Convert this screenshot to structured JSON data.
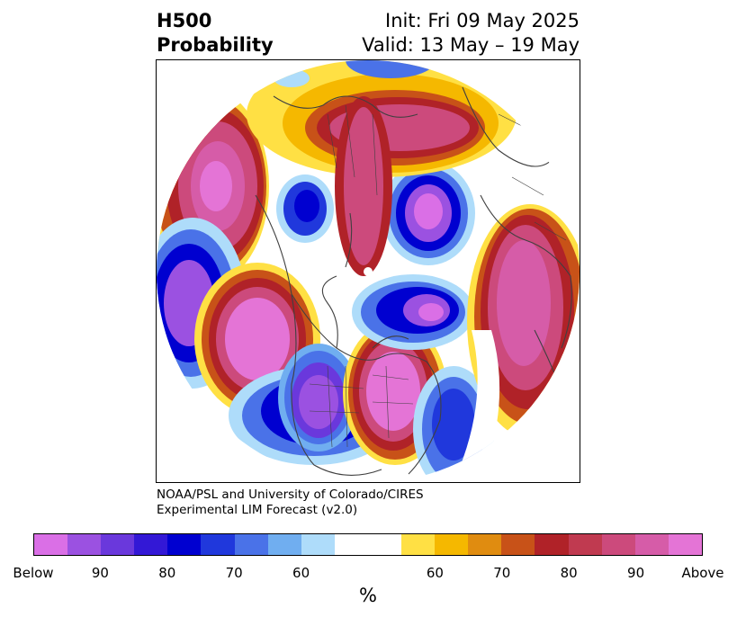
{
  "title": {
    "left_line1": "H500",
    "left_line2": "Probability",
    "right_line1": "Init: Fri 09 May 2025",
    "right_line2": "Valid: 13 May – 19 May"
  },
  "credit": {
    "line1": "NOAA/PSL and University of Colorado/CIRES",
    "line2": "Experimental LIM Forecast (v2.0)"
  },
  "colorbar": {
    "unit": "%",
    "colors": [
      "#da6fe6",
      "#9b51e1",
      "#6a38dc",
      "#3318d6",
      "#0000d0",
      "#2038dc",
      "#4a72e8",
      "#70aef0",
      "#aedcfa",
      "#ffffff",
      "#ffffff",
      "#ffe044",
      "#f5b800",
      "#e08c10",
      "#c85218",
      "#b02228",
      "#c03a50",
      "#cc4a7c",
      "#d65ca8",
      "#e474d6"
    ],
    "ticks": [
      "Below",
      "90",
      "80",
      "70",
      "60",
      "60",
      "70",
      "80",
      "90",
      "Above"
    ]
  },
  "palette": {
    "below_strong": "#da6fe6",
    "below_mid": "#2038dc",
    "below_weak": "#aedcfa",
    "above_weak": "#ffe044",
    "above_mid": "#c85218",
    "above_strong": "#e474d6",
    "coastline": "#404040"
  }
}
